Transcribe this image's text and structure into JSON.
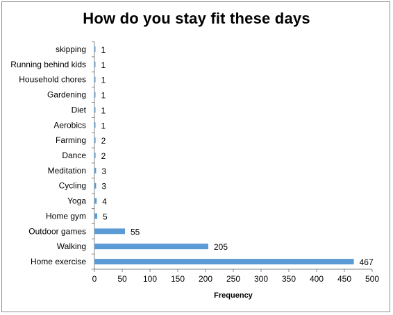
{
  "chart_data": {
    "type": "bar",
    "orientation": "horizontal",
    "title": "How do you stay fit these days",
    "xlabel": "Frequency",
    "ylabel": "",
    "xlim": [
      0,
      500
    ],
    "x_ticks": [
      0,
      50,
      100,
      150,
      200,
      250,
      300,
      350,
      400,
      450,
      500
    ],
    "grid": false,
    "legend": "none",
    "bar_color": "#5b9bd5",
    "categories": [
      "skipping",
      "Running behind kids",
      "Household chores",
      "Gardening",
      "Diet",
      "Aerobics",
      "Farming",
      "Dance",
      "Meditation",
      "Cycling",
      "Yoga",
      "Home gym",
      "Outdoor games",
      "Walking",
      "Home exercise"
    ],
    "values": [
      1,
      1,
      1,
      1,
      1,
      1,
      2,
      2,
      3,
      3,
      4,
      5,
      55,
      205,
      467
    ]
  }
}
